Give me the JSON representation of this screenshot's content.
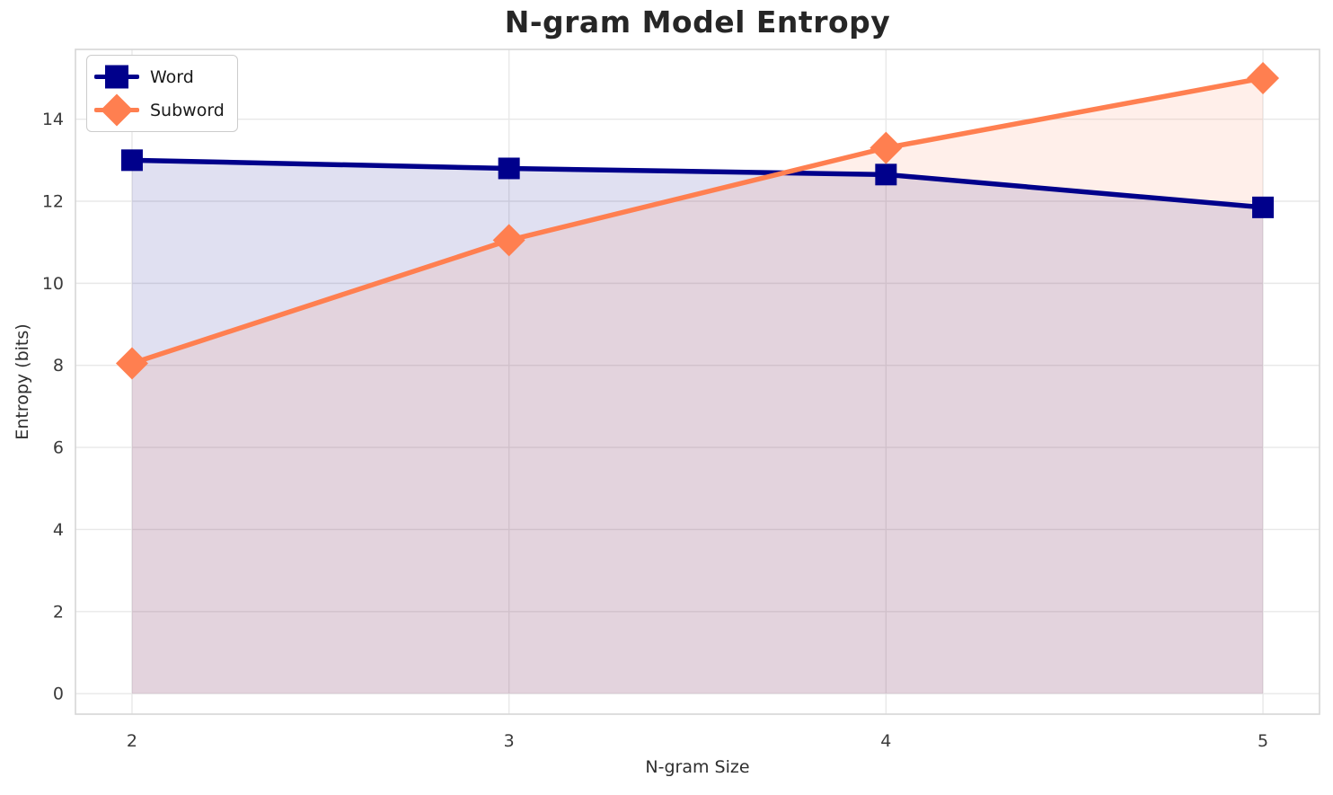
{
  "chart_data": {
    "type": "line",
    "title": "N-gram Model Entropy",
    "xlabel": "N-gram Size",
    "ylabel": "Entropy (bits)",
    "x": [
      2,
      3,
      4,
      5
    ],
    "series": [
      {
        "name": "Word",
        "values": [
          13.0,
          12.8,
          12.65,
          11.85
        ],
        "color": "#00008B",
        "marker": "square",
        "fill_to_zero": true
      },
      {
        "name": "Subword",
        "values": [
          8.05,
          11.05,
          13.3,
          15.0
        ],
        "color": "#FF7F50",
        "marker": "diamond",
        "fill_to_zero": true
      }
    ],
    "xticks": [
      "2",
      "3",
      "4",
      "5"
    ],
    "xtick_values": [
      2,
      3,
      4,
      5
    ],
    "yticks": [
      "0",
      "2",
      "4",
      "6",
      "8",
      "10",
      "12",
      "14"
    ],
    "ytick_values": [
      0,
      2,
      4,
      6,
      8,
      10,
      12,
      14
    ],
    "xlim": [
      1.85,
      5.15
    ],
    "ylim": [
      -0.5,
      15.7
    ],
    "grid": true,
    "legend_position": "upper-left",
    "fill_alpha": 0.12,
    "line_width": 5.5,
    "colors": {
      "grid": "#E8E8E8",
      "spine": "#D6D6D6",
      "title": "#262626",
      "tick": "#3A3A3A",
      "axis_label": "#2E2E2E",
      "legend_border": "#CCCCCC",
      "background": "#FFFFFF"
    }
  }
}
